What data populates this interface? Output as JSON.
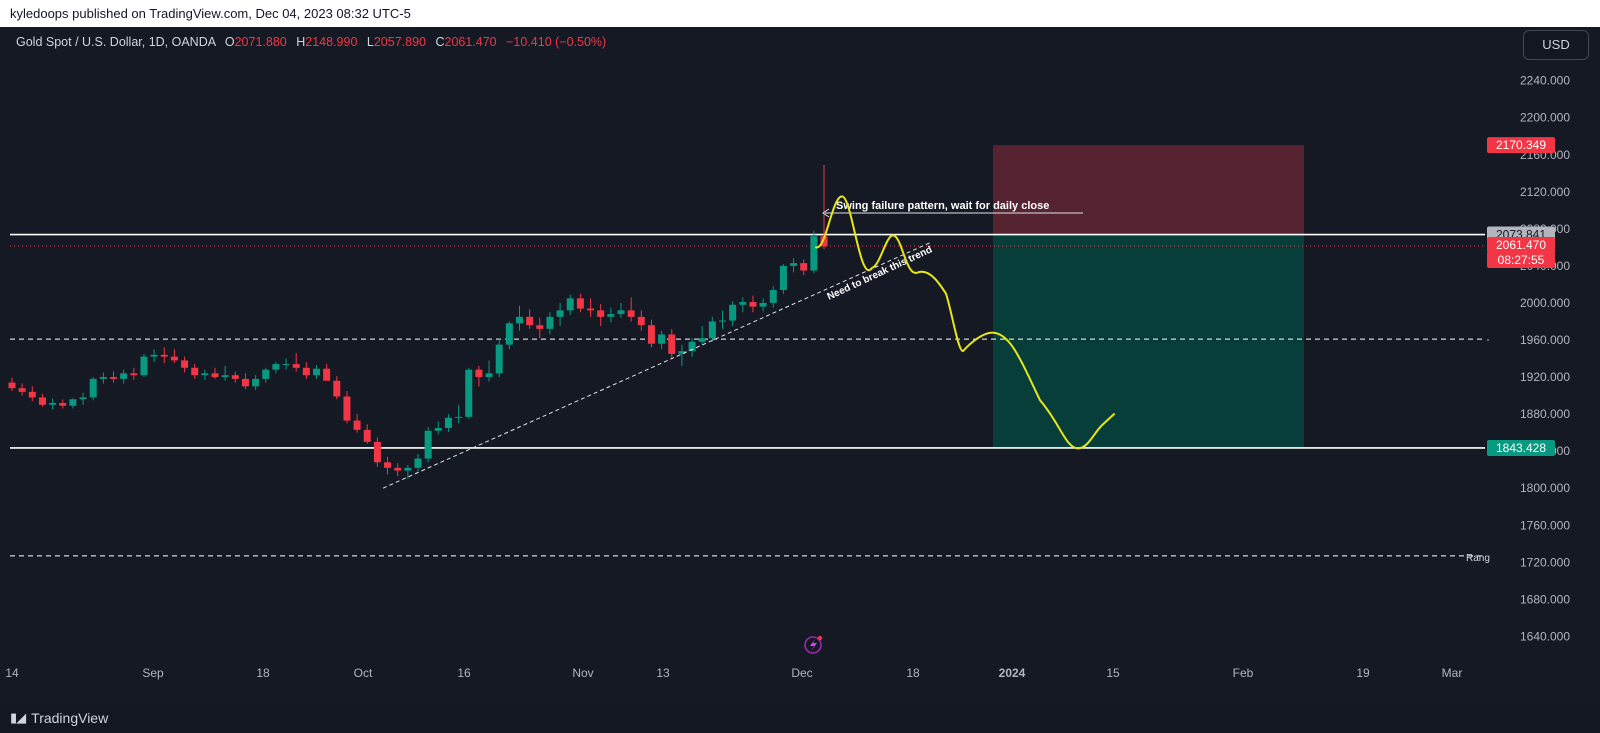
{
  "header": {
    "publish_line": "kyledoops published on TradingView.com, Dec 04, 2023 08:32 UTC-5"
  },
  "legend": {
    "symbol": "Gold Spot / U.S. Dollar, 1D, OANDA",
    "open_label": "O",
    "open": "2071.880",
    "high_label": "H",
    "high": "2148.990",
    "low_label": "L",
    "low": "2057.890",
    "close_label": "C",
    "close": "2061.470",
    "change": "−10.410 (−0.50%)"
  },
  "currency_button": "USD",
  "footer": {
    "brand": "TradingView"
  },
  "colors": {
    "background": "#131722",
    "up": "#089981",
    "down": "#f23645",
    "drawing": "#e6e619",
    "stop_zone": "#5a2432",
    "target_zone": "#06403b"
  },
  "chart_data": {
    "type": "candlestick",
    "y_axis": {
      "range": [
        1600,
        2280
      ],
      "ticks": [
        "2240.000",
        "2200.000",
        "2160.000",
        "2120.000",
        "2080.000",
        "2040.000",
        "2000.000",
        "1960.000",
        "1920.000",
        "1880.000",
        "1840.000",
        "1800.000",
        "1760.000",
        "1720.000",
        "1680.000",
        "1640.000"
      ]
    },
    "x_axis": {
      "ticks": [
        {
          "label": "14",
          "bold": false
        },
        {
          "label": "Sep",
          "bold": false
        },
        {
          "label": "18",
          "bold": false
        },
        {
          "label": "Oct",
          "bold": false
        },
        {
          "label": "16",
          "bold": false
        },
        {
          "label": "Nov",
          "bold": false
        },
        {
          "label": "13",
          "bold": false
        },
        {
          "label": "Dec",
          "bold": false
        },
        {
          "label": "18",
          "bold": false
        },
        {
          "label": "2024",
          "bold": true
        },
        {
          "label": "15",
          "bold": false
        },
        {
          "label": "Feb",
          "bold": false
        },
        {
          "label": "19",
          "bold": false
        },
        {
          "label": "Mar",
          "bold": false
        }
      ]
    },
    "candles": [
      {
        "o": 1914,
        "h": 1919,
        "l": 1905,
        "c": 1908
      },
      {
        "o": 1908,
        "h": 1913,
        "l": 1900,
        "c": 1904
      },
      {
        "o": 1904,
        "h": 1910,
        "l": 1894,
        "c": 1898
      },
      {
        "o": 1898,
        "h": 1902,
        "l": 1888,
        "c": 1890
      },
      {
        "o": 1890,
        "h": 1897,
        "l": 1885,
        "c": 1892
      },
      {
        "o": 1892,
        "h": 1896,
        "l": 1886,
        "c": 1889
      },
      {
        "o": 1889,
        "h": 1897,
        "l": 1886,
        "c": 1896
      },
      {
        "o": 1896,
        "h": 1903,
        "l": 1890,
        "c": 1898
      },
      {
        "o": 1898,
        "h": 1920,
        "l": 1895,
        "c": 1918
      },
      {
        "o": 1918,
        "h": 1925,
        "l": 1913,
        "c": 1920
      },
      {
        "o": 1920,
        "h": 1926,
        "l": 1914,
        "c": 1918
      },
      {
        "o": 1918,
        "h": 1928,
        "l": 1913,
        "c": 1924
      },
      {
        "o": 1924,
        "h": 1930,
        "l": 1917,
        "c": 1922
      },
      {
        "o": 1922,
        "h": 1945,
        "l": 1920,
        "c": 1942
      },
      {
        "o": 1942,
        "h": 1950,
        "l": 1936,
        "c": 1944
      },
      {
        "o": 1944,
        "h": 1952,
        "l": 1935,
        "c": 1942
      },
      {
        "o": 1942,
        "h": 1950,
        "l": 1935,
        "c": 1938
      },
      {
        "o": 1938,
        "h": 1942,
        "l": 1925,
        "c": 1930
      },
      {
        "o": 1930,
        "h": 1934,
        "l": 1918,
        "c": 1922
      },
      {
        "o": 1922,
        "h": 1928,
        "l": 1917,
        "c": 1924
      },
      {
        "o": 1924,
        "h": 1930,
        "l": 1918,
        "c": 1920
      },
      {
        "o": 1920,
        "h": 1932,
        "l": 1916,
        "c": 1922
      },
      {
        "o": 1922,
        "h": 1926,
        "l": 1914,
        "c": 1918
      },
      {
        "o": 1918,
        "h": 1924,
        "l": 1907,
        "c": 1910
      },
      {
        "o": 1910,
        "h": 1922,
        "l": 1906,
        "c": 1918
      },
      {
        "o": 1918,
        "h": 1930,
        "l": 1914,
        "c": 1928
      },
      {
        "o": 1928,
        "h": 1936,
        "l": 1924,
        "c": 1934
      },
      {
        "o": 1934,
        "h": 1940,
        "l": 1928,
        "c": 1934
      },
      {
        "o": 1934,
        "h": 1946,
        "l": 1926,
        "c": 1930
      },
      {
        "o": 1930,
        "h": 1936,
        "l": 1918,
        "c": 1922
      },
      {
        "o": 1922,
        "h": 1933,
        "l": 1918,
        "c": 1929
      },
      {
        "o": 1929,
        "h": 1934,
        "l": 1918,
        "c": 1916
      },
      {
        "o": 1916,
        "h": 1921,
        "l": 1896,
        "c": 1899
      },
      {
        "o": 1899,
        "h": 1905,
        "l": 1870,
        "c": 1873
      },
      {
        "o": 1873,
        "h": 1880,
        "l": 1860,
        "c": 1863
      },
      {
        "o": 1863,
        "h": 1869,
        "l": 1848,
        "c": 1850
      },
      {
        "o": 1850,
        "h": 1855,
        "l": 1823,
        "c": 1828
      },
      {
        "o": 1828,
        "h": 1834,
        "l": 1815,
        "c": 1822
      },
      {
        "o": 1822,
        "h": 1827,
        "l": 1813,
        "c": 1819
      },
      {
        "o": 1819,
        "h": 1825,
        "l": 1810,
        "c": 1822
      },
      {
        "o": 1822,
        "h": 1837,
        "l": 1818,
        "c": 1832
      },
      {
        "o": 1832,
        "h": 1866,
        "l": 1828,
        "c": 1862
      },
      {
        "o": 1862,
        "h": 1872,
        "l": 1858,
        "c": 1865
      },
      {
        "o": 1865,
        "h": 1880,
        "l": 1861,
        "c": 1876
      },
      {
        "o": 1876,
        "h": 1890,
        "l": 1870,
        "c": 1877
      },
      {
        "o": 1877,
        "h": 1930,
        "l": 1875,
        "c": 1928
      },
      {
        "o": 1928,
        "h": 1932,
        "l": 1910,
        "c": 1920
      },
      {
        "o": 1920,
        "h": 1938,
        "l": 1915,
        "c": 1924
      },
      {
        "o": 1924,
        "h": 1962,
        "l": 1920,
        "c": 1955
      },
      {
        "o": 1955,
        "h": 1980,
        "l": 1950,
        "c": 1978
      },
      {
        "o": 1978,
        "h": 1997,
        "l": 1970,
        "c": 1985
      },
      {
        "o": 1985,
        "h": 1993,
        "l": 1972,
        "c": 1976
      },
      {
        "o": 1976,
        "h": 1984,
        "l": 1962,
        "c": 1972
      },
      {
        "o": 1972,
        "h": 1990,
        "l": 1966,
        "c": 1985
      },
      {
        "o": 1985,
        "h": 2000,
        "l": 1975,
        "c": 1992
      },
      {
        "o": 1992,
        "h": 2009,
        "l": 1987,
        "c": 2005
      },
      {
        "o": 2005,
        "h": 2010,
        "l": 1990,
        "c": 1994
      },
      {
        "o": 1994,
        "h": 2005,
        "l": 1985,
        "c": 1992
      },
      {
        "o": 1992,
        "h": 1999,
        "l": 1975,
        "c": 1985
      },
      {
        "o": 1985,
        "h": 1995,
        "l": 1979,
        "c": 1988
      },
      {
        "o": 1988,
        "h": 2000,
        "l": 1984,
        "c": 1992
      },
      {
        "o": 1992,
        "h": 2006,
        "l": 1980,
        "c": 1985
      },
      {
        "o": 1985,
        "h": 1992,
        "l": 1970,
        "c": 1976
      },
      {
        "o": 1976,
        "h": 1982,
        "l": 1952,
        "c": 1956
      },
      {
        "o": 1956,
        "h": 1970,
        "l": 1950,
        "c": 1966
      },
      {
        "o": 1966,
        "h": 1972,
        "l": 1940,
        "c": 1945
      },
      {
        "o": 1945,
        "h": 1955,
        "l": 1932,
        "c": 1948
      },
      {
        "o": 1948,
        "h": 1962,
        "l": 1942,
        "c": 1958
      },
      {
        "o": 1958,
        "h": 1975,
        "l": 1955,
        "c": 1962
      },
      {
        "o": 1962,
        "h": 1985,
        "l": 1958,
        "c": 1980
      },
      {
        "o": 1980,
        "h": 1992,
        "l": 1972,
        "c": 1981
      },
      {
        "o": 1981,
        "h": 2002,
        "l": 1975,
        "c": 1998
      },
      {
        "o": 1998,
        "h": 2006,
        "l": 1990,
        "c": 2001
      },
      {
        "o": 2001,
        "h": 2008,
        "l": 1990,
        "c": 1996
      },
      {
        "o": 1996,
        "h": 2005,
        "l": 1991,
        "c": 2000
      },
      {
        "o": 2000,
        "h": 2018,
        "l": 1995,
        "c": 2014
      },
      {
        "o": 2014,
        "h": 2042,
        "l": 2010,
        "c": 2040
      },
      {
        "o": 2040,
        "h": 2048,
        "l": 2033,
        "c": 2043
      },
      {
        "o": 2043,
        "h": 2047,
        "l": 2030,
        "c": 2035
      },
      {
        "o": 2035,
        "h": 2078,
        "l": 2032,
        "c": 2072
      },
      {
        "o": 2072,
        "h": 2149,
        "l": 2058,
        "c": 2061
      }
    ],
    "horizontal_lines": [
      {
        "value": 2073.841,
        "style": "solid"
      },
      {
        "value": 1961,
        "style": "dashed"
      },
      {
        "value": 1843.428,
        "style": "solid"
      },
      {
        "value": 1727,
        "style": "dashed"
      }
    ],
    "price_tags": [
      {
        "value": "2170.349",
        "price": 2170.349,
        "kind": "stop"
      },
      {
        "value": "2073.841",
        "price": 2073.841,
        "kind": "entry"
      },
      {
        "value": "2061.470",
        "price": 2061.47,
        "kind": "last"
      },
      {
        "value": "08:27:55",
        "price": 2061.47,
        "kind": "countdown"
      },
      {
        "value": "1843.428",
        "price": 1843.428,
        "kind": "target"
      }
    ],
    "position_tool": {
      "stop": 2170.349,
      "entry": 2073.841,
      "target": 1843.428
    },
    "annotations": [
      {
        "text": "Swing failure pattern, wait for daily close"
      },
      {
        "text": "Need to break this trend"
      },
      {
        "text": "Rang"
      }
    ],
    "trendline": {
      "from_price": 1800,
      "to_price": 2066
    },
    "projection_path": [
      2060,
      2115,
      2040,
      2073,
      2033,
      1948,
      1968,
      1843,
      1880
    ]
  }
}
